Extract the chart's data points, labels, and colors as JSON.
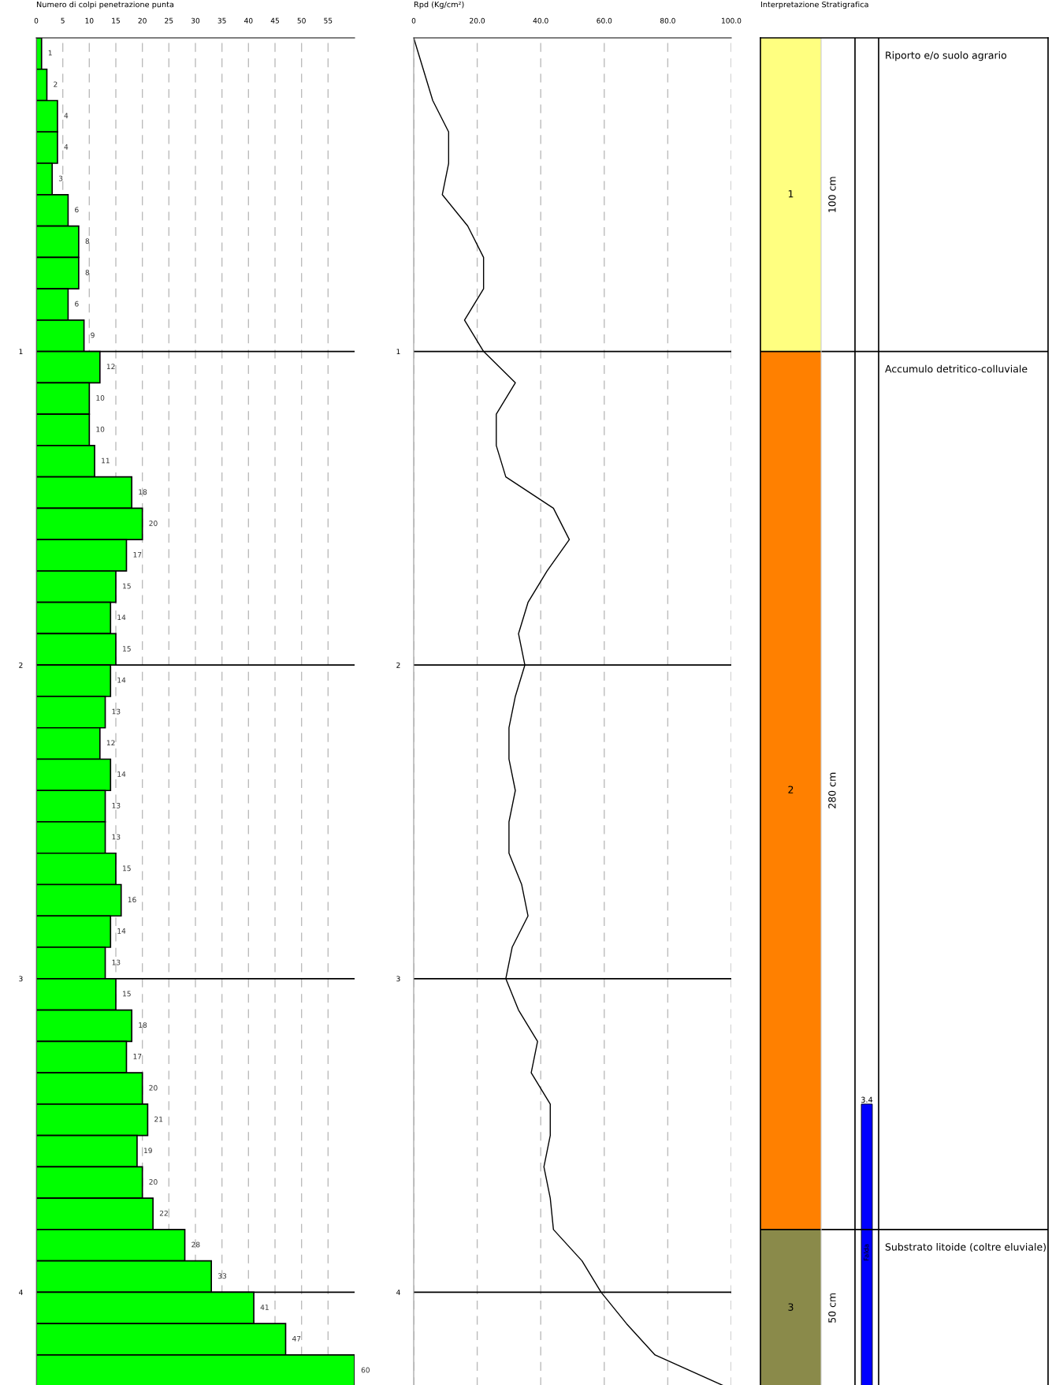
{
  "chart_data": [
    {
      "type": "histogram",
      "orientation": "horizontal",
      "title": "Numero di colpi penetrazione punta",
      "color": "#00ff00",
      "bins": [
        0,
        0.1,
        0.2,
        0.3,
        0.4,
        0.5,
        0.6,
        0.7,
        0.8,
        0.9,
        1.0,
        1.1,
        1.2,
        1.3,
        1.4,
        1.5,
        1.6,
        1.7,
        1.8,
        1.9,
        2.0,
        2.1,
        2.2,
        2.3,
        2.4,
        2.5,
        2.6,
        2.7,
        2.8,
        2.9,
        3.0,
        3.1,
        3.2,
        3.3,
        3.4,
        3.5,
        3.6,
        3.7,
        3.8,
        3.9,
        4.0,
        4.1,
        4.2,
        4.3
      ],
      "values": [
        1,
        2,
        4,
        4,
        3,
        6,
        8,
        8,
        6,
        9,
        12,
        10,
        10,
        11,
        18,
        20,
        17,
        15,
        14,
        15,
        14,
        13,
        12,
        14,
        13,
        13,
        15,
        16,
        14,
        13,
        15,
        18,
        17,
        20,
        21,
        19,
        20,
        22,
        28,
        33,
        41,
        47,
        60
      ],
      "data_labels": true,
      "xlim": [
        0,
        60
      ],
      "xticks": [
        0,
        5,
        10,
        15,
        20,
        25,
        30,
        35,
        40,
        45,
        50,
        55
      ],
      "ylim": [
        4.3,
        0
      ],
      "yticks": [
        1,
        2,
        3,
        4
      ],
      "grid": true
    },
    {
      "type": "line",
      "orientation": "horizontal",
      "title": "Rpd (Kg/cm²)",
      "color": "#000000",
      "x": [
        0,
        0.1,
        0.2,
        0.3,
        0.4,
        0.5,
        0.6,
        0.7,
        0.8,
        0.9,
        1.0,
        1.1,
        1.2,
        1.3,
        1.4,
        1.5,
        1.6,
        1.7,
        1.8,
        1.9,
        2.0,
        2.1,
        2.2,
        2.3,
        2.4,
        2.5,
        2.6,
        2.7,
        2.8,
        2.9,
        3.0,
        3.1,
        3.2,
        3.3,
        3.4,
        3.5,
        3.6,
        3.7,
        3.8,
        3.9,
        4.0,
        4.1,
        4.2,
        4.3
      ],
      "values": [
        0,
        3,
        6,
        11,
        11,
        9,
        17,
        22,
        22,
        16,
        22,
        32,
        26,
        26,
        29,
        44,
        49,
        42,
        36,
        33,
        35,
        32,
        30,
        30,
        32,
        30,
        30,
        34,
        36,
        31,
        29,
        33,
        39,
        37,
        43,
        43,
        41,
        43,
        44,
        53,
        59,
        67,
        76,
        98
      ],
      "xlim": [
        0,
        100
      ],
      "xticks": [
        0,
        {
          "value": 20,
          "label": "20.0"
        },
        {
          "value": 40,
          "label": "40.0"
        },
        {
          "value": 60,
          "label": "60.0"
        },
        {
          "value": 80,
          "label": "80.0"
        },
        {
          "value": 100,
          "label": "100.0"
        }
      ],
      "ylim": [
        4.3,
        0
      ],
      "yticks": [
        1,
        2,
        3,
        4
      ],
      "grid": true,
      "line_style": "solid",
      "marker": "none"
    },
    {
      "type": "other",
      "title": "Interpretazione Stratigrafica",
      "categories": [
        "1",
        "2",
        "3"
      ],
      "values": [
        100,
        280,
        50
      ],
      "value_labels": [
        "100 cm",
        "280 cm",
        "50 cm"
      ],
      "colors": [
        "#ffff80",
        "#ff8000",
        "#8a8a4a"
      ],
      "annotations": [
        "Riporto e/o suolo agrario",
        "Accumulo detritico-colluviale",
        "Substrato litoide (coltre eluviale)",
        "3.4",
        "Falda"
      ]
    }
  ]
}
